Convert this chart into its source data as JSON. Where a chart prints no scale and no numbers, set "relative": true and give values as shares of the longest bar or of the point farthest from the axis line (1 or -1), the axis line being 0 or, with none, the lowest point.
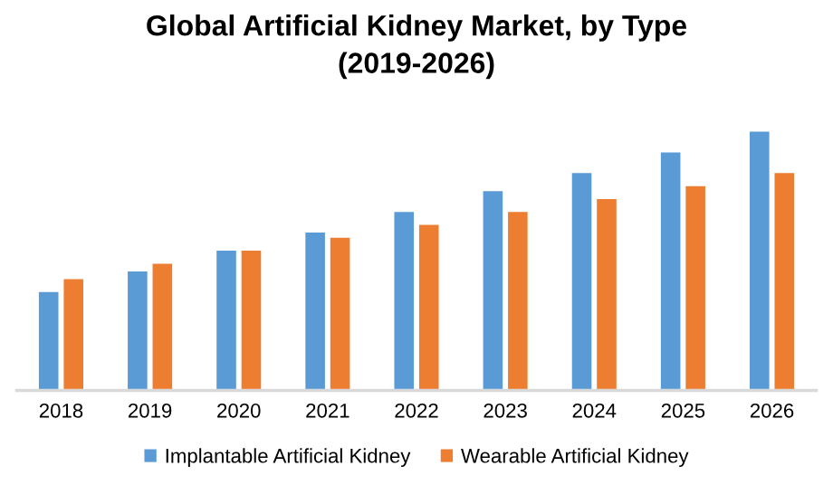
{
  "chart_data": {
    "type": "bar",
    "title": "Global Artificial Kidney Market, by Type\n(2019-2026)",
    "relative": true,
    "categories": [
      "2018",
      "2019",
      "2020",
      "2021",
      "2022",
      "2023",
      "2024",
      "2025",
      "2026"
    ],
    "series": [
      {
        "name": "Implantable Artificial Kidney",
        "color": "#5b9bd5",
        "values": [
          0.38,
          0.46,
          0.54,
          0.61,
          0.69,
          0.77,
          0.84,
          0.92,
          1.0
        ]
      },
      {
        "name": "Wearable Artificial Kidney",
        "color": "#ed7d31",
        "values": [
          0.43,
          0.49,
          0.54,
          0.59,
          0.64,
          0.69,
          0.74,
          0.79,
          0.84
        ]
      }
    ],
    "legend": "bottom",
    "grid": false
  }
}
